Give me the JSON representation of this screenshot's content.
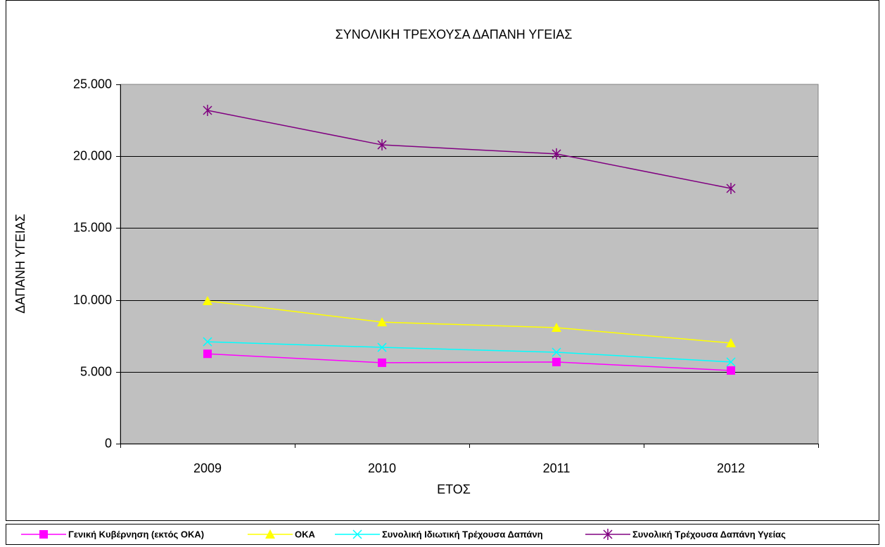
{
  "chart_data": {
    "type": "line",
    "title": "ΣΥΝΟΛΙΚΗ ΤΡΕΧΟΥΣΑ ΔΑΠΑΝΗ ΥΓΕΙΑΣ",
    "x_label": "ΕΤΟΣ",
    "y_label": "ΔΑΠΑΝΗ ΥΓΕΙΑΣ",
    "categories": [
      "2009",
      "2010",
      "2011",
      "2012"
    ],
    "series": [
      {
        "name": "Γενική Κυβέρνηση (εκτός ΟΚΑ)",
        "color": "#ff00ff",
        "marker": "square",
        "values": [
          6250,
          5630,
          5680,
          5090
        ]
      },
      {
        "name": "ΟΚΑ",
        "color": "#ffff00",
        "marker": "triangle",
        "values": [
          9930,
          8460,
          8070,
          7000
        ]
      },
      {
        "name": "Συνολική Ιδιωτική Τρέχουσα Δαπάνη",
        "color": "#00ffff",
        "marker": "x",
        "values": [
          7090,
          6700,
          6360,
          5680
        ]
      },
      {
        "name": "Συνολική Τρέχουσα Δαπάνη Υγείας",
        "color": "#800080",
        "marker": "asterisk",
        "values": [
          23190,
          20790,
          20160,
          17760
        ]
      }
    ],
    "ylim": [
      0,
      25000
    ],
    "yticks": [
      0,
      {
        "value": 5000,
        "label": "5.000"
      },
      {
        "value": 10000,
        "label": "10.000"
      },
      {
        "value": 15000,
        "label": "15.000"
      },
      {
        "value": 20000,
        "label": "20.000"
      },
      {
        "value": 25000,
        "label": "25.000"
      }
    ],
    "grid": true,
    "legend": "bottom",
    "plot_background": "#c0c0c0"
  }
}
